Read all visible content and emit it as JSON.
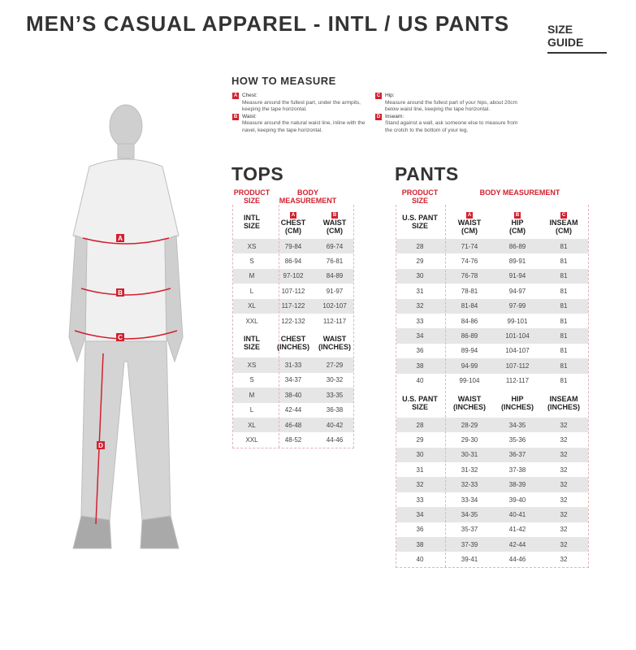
{
  "header": {
    "title": "MEN’S CASUAL APPAREL - INTL / US PANTS",
    "size_guide": "SIZE GUIDE"
  },
  "how_to_measure": {
    "title": "HOW TO MEASURE",
    "items": [
      {
        "letter": "A",
        "label": "Chest:",
        "desc": "Measure around the fullest part, under the armpits, keeping the tape horizontal."
      },
      {
        "letter": "B",
        "label": "Waist:",
        "desc": "Measure around the natural waist line, inline with the navel, keeping the tape horizontal."
      },
      {
        "letter": "C",
        "label": "Hip:",
        "desc": "Measure around the fullest part of your hips, about 20cm below waist line, keeping the tape horizontal."
      },
      {
        "letter": "D",
        "label": "Inseam:",
        "desc": "Stand against a wall, ask someone else to measure from the crotch to the bottom of your leg."
      }
    ]
  },
  "figure": {
    "markers": [
      "A",
      "B",
      "C",
      "D"
    ],
    "accent": "#d2202f"
  },
  "tops": {
    "title": "TOPS",
    "product_size": "PRODUCT SIZE",
    "body_measurement": "BODY MEASUREMENT",
    "letters": [
      "A",
      "B"
    ],
    "cm_header": [
      "INTL SIZE",
      "CHEST (CM)",
      "WAIST (CM)"
    ],
    "cm_rows": [
      [
        "XS",
        "79-84",
        "69-74"
      ],
      [
        "S",
        "86-94",
        "76-81"
      ],
      [
        "M",
        "97-102",
        "84-89"
      ],
      [
        "L",
        "107-112",
        "91-97"
      ],
      [
        "XL",
        "117-122",
        "102-107"
      ],
      [
        "XXL",
        "122-132",
        "112-117"
      ]
    ],
    "in_header": [
      "INTL SIZE",
      "CHEST (INCHES)",
      "WAIST (INCHES)"
    ],
    "in_rows": [
      [
        "XS",
        "31-33",
        "27-29"
      ],
      [
        "S",
        "34-37",
        "30-32"
      ],
      [
        "M",
        "38-40",
        "33-35"
      ],
      [
        "L",
        "42-44",
        "36-38"
      ],
      [
        "XL",
        "46-48",
        "40-42"
      ],
      [
        "XXL",
        "48-52",
        "44-46"
      ]
    ]
  },
  "pants": {
    "title": "PANTS",
    "product_size": "PRODUCT SIZE",
    "body_measurement": "BODY MEASUREMENT",
    "letters": [
      "A",
      "B",
      "C"
    ],
    "cm_header": [
      "U.S. PANT SIZE",
      "WAIST (CM)",
      "HIP (CM)",
      "INSEAM (CM)"
    ],
    "cm_rows": [
      [
        "28",
        "71-74",
        "86-89",
        "81"
      ],
      [
        "29",
        "74-76",
        "89-91",
        "81"
      ],
      [
        "30",
        "76-78",
        "91-94",
        "81"
      ],
      [
        "31",
        "78-81",
        "94-97",
        "81"
      ],
      [
        "32",
        "81-84",
        "97-99",
        "81"
      ],
      [
        "33",
        "84-86",
        "99-101",
        "81"
      ],
      [
        "34",
        "86-89",
        "101-104",
        "81"
      ],
      [
        "36",
        "89-94",
        "104-107",
        "81"
      ],
      [
        "38",
        "94-99",
        "107-112",
        "81"
      ],
      [
        "40",
        "99-104",
        "112-117",
        "81"
      ]
    ],
    "in_header": [
      "U.S. PANT SIZE",
      "WAIST (INCHES)",
      "HIP (INCHES)",
      "INSEAM (INCHES)"
    ],
    "in_rows": [
      [
        "28",
        "28-29",
        "34-35",
        "32"
      ],
      [
        "29",
        "29-30",
        "35-36",
        "32"
      ],
      [
        "30",
        "30-31",
        "36-37",
        "32"
      ],
      [
        "31",
        "31-32",
        "37-38",
        "32"
      ],
      [
        "32",
        "32-33",
        "38-39",
        "32"
      ],
      [
        "33",
        "33-34",
        "39-40",
        "32"
      ],
      [
        "34",
        "34-35",
        "40-41",
        "32"
      ],
      [
        "36",
        "35-37",
        "41-42",
        "32"
      ],
      [
        "38",
        "37-39",
        "42-44",
        "32"
      ],
      [
        "40",
        "39-41",
        "44-46",
        "32"
      ]
    ]
  }
}
